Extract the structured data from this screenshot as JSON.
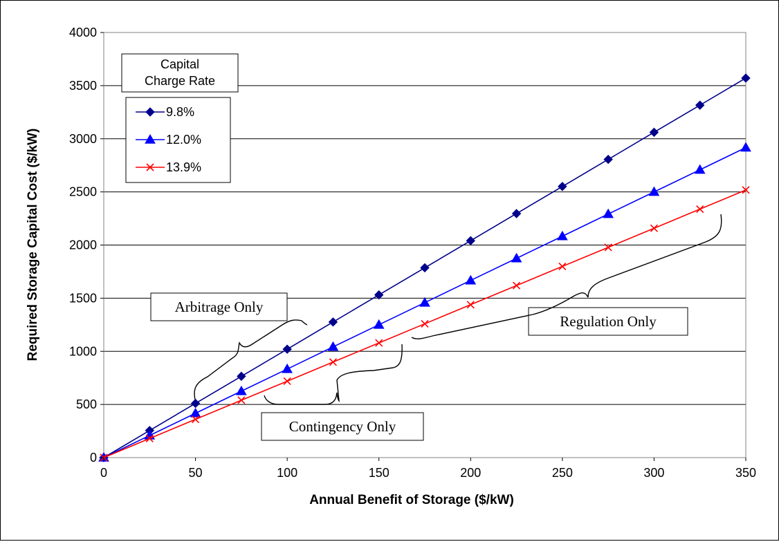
{
  "chart_data": {
    "type": "line",
    "title": "",
    "xlabel": "Annual Benefit of Storage ($/kW)",
    "ylabel": "Required Storage Capital Cost ($/kW)",
    "xlim": [
      0,
      350
    ],
    "ylim": [
      0,
      4000
    ],
    "x_ticks": [
      0,
      50,
      100,
      150,
      200,
      250,
      300,
      350
    ],
    "y_ticks": [
      0,
      500,
      1000,
      1500,
      2000,
      2500,
      3000,
      3500,
      4000
    ],
    "grid": "horizontal",
    "legend": {
      "title_lines": [
        "Capital",
        "Charge Rate"
      ],
      "placement": "top-left"
    },
    "x": [
      0,
      25,
      50,
      75,
      100,
      125,
      150,
      175,
      200,
      225,
      250,
      275,
      300,
      325,
      350
    ],
    "series": [
      {
        "name": "9.8%",
        "color": "#00008B",
        "marker": "diamond",
        "values": [
          0,
          255,
          510,
          765,
          1020,
          1276,
          1531,
          1786,
          2041,
          2296,
          2551,
          2806,
          3061,
          3316,
          3571
        ]
      },
      {
        "name": "12.0%",
        "color": "#0000FF",
        "marker": "triangle",
        "values": [
          0,
          208,
          417,
          625,
          833,
          1042,
          1250,
          1458,
          1667,
          1875,
          2083,
          2292,
          2500,
          2708,
          2917
        ]
      },
      {
        "name": "13.9%",
        "color": "#FF0000",
        "marker": "x",
        "values": [
          0,
          180,
          360,
          540,
          719,
          899,
          1079,
          1259,
          1439,
          1619,
          1799,
          1978,
          2158,
          2338,
          2518
        ]
      }
    ],
    "annotations": [
      {
        "id": "arbitrage",
        "text": "Arbitrage Only"
      },
      {
        "id": "contingency",
        "text": "Contingency Only"
      },
      {
        "id": "regulation",
        "text": "Regulation Only"
      }
    ]
  }
}
